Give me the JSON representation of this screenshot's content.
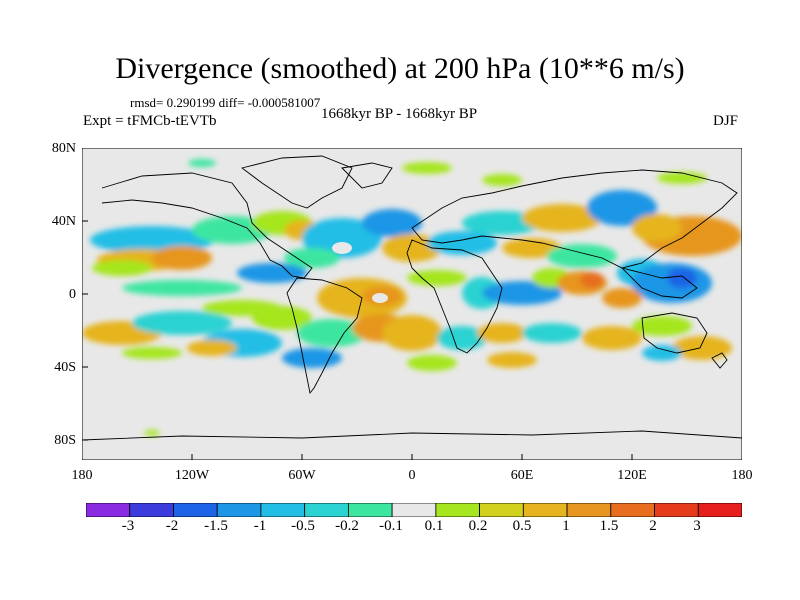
{
  "title": "Divergence (smoothed) at 200 hPa (10**6 m/s)",
  "stats": "rmsd= 0.290199 diff= -0.000581007",
  "expt": "Expt = tFMCb-tEVTb",
  "period": "1668kyr BP - 1668kyr BP",
  "season": "DJF",
  "lat_ticks": [
    "80N",
    "40N",
    "0",
    "40S",
    "80S"
  ],
  "lon_ticks": [
    "180",
    "120W",
    "60W",
    "0",
    "60E",
    "120E",
    "180"
  ],
  "colorbar": {
    "labels": [
      "-3",
      "-2",
      "-1.5",
      "-1",
      "-0.5",
      "-0.2",
      "-0.1",
      "0.1",
      "0.2",
      "0.5",
      "1",
      "1.5",
      "2",
      "3"
    ],
    "colors": [
      "#8a2be2",
      "#3c3cdc",
      "#1e64e6",
      "#1e96e6",
      "#23bee6",
      "#2ad2d2",
      "#3ce6a0",
      "#e8e8e8",
      "#a5e61e",
      "#d2d21e",
      "#e6b41e",
      "#e6961e",
      "#e66e1e",
      "#e63c1e",
      "#e61e1e"
    ]
  },
  "legend_colors": {
    "neutral": "#e8e8e8",
    "background": "#ffffff"
  }
}
